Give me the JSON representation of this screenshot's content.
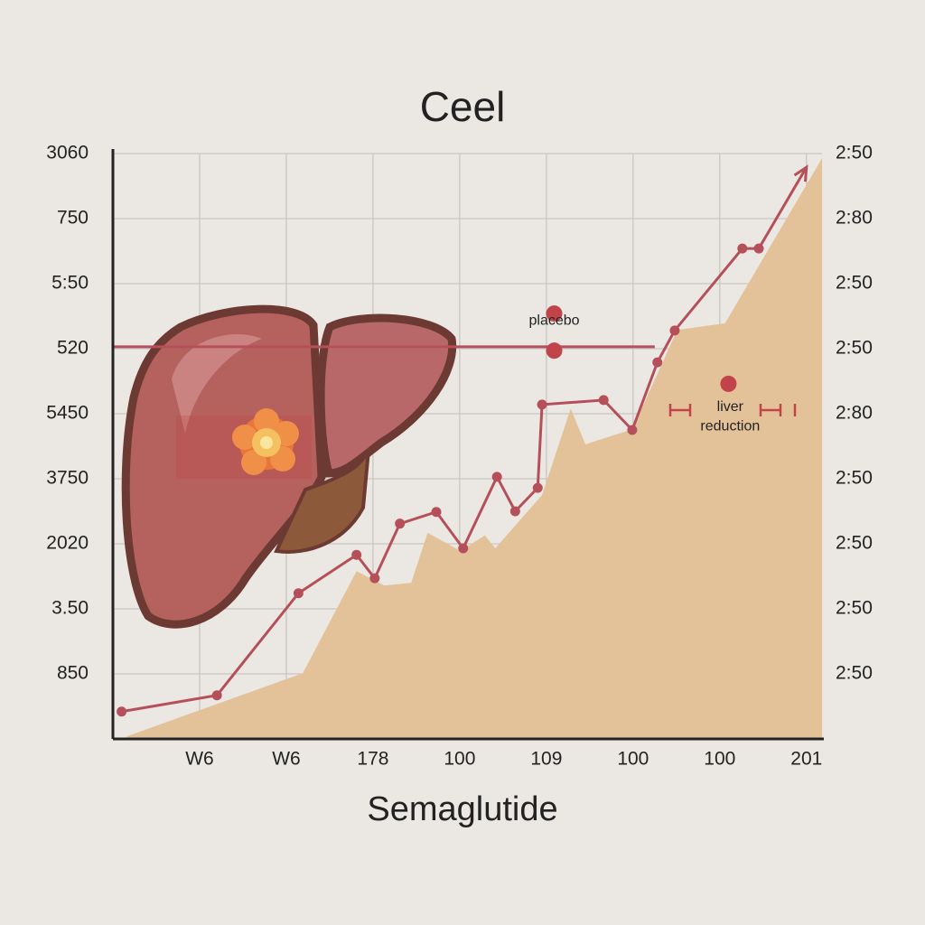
{
  "chart_data": {
    "type": "line",
    "title": "Ceel",
    "x_label": "Semaglutide",
    "xlim": [
      0,
      8.2
    ],
    "xticks": [
      {
        "value": 1,
        "label": "W6"
      },
      {
        "value": 2,
        "label": "W6"
      },
      {
        "value": 3,
        "label": "178"
      },
      {
        "value": 4,
        "label": "100"
      },
      {
        "value": 5,
        "label": "109"
      },
      {
        "value": 6,
        "label": "100"
      },
      {
        "value": 7,
        "label": "100"
      },
      {
        "value": 8,
        "label": "201"
      }
    ],
    "ylim": [
      0,
      9
    ],
    "yticks": [
      {
        "value": 1,
        "label": "850"
      },
      {
        "value": 2,
        "label": "3.50"
      },
      {
        "value": 3,
        "label": "2020"
      },
      {
        "value": 4,
        "label": "3750"
      },
      {
        "value": 5,
        "label": "5450"
      },
      {
        "value": 6,
        "label": "520"
      },
      {
        "value": 7,
        "label": "5:50"
      },
      {
        "value": 8,
        "label": "750"
      },
      {
        "value": 9,
        "label": "3060"
      }
    ],
    "y2lim": [
      0,
      9
    ],
    "y2ticks": [
      {
        "value": 1,
        "label": "2:50"
      },
      {
        "value": 2,
        "label": "2:50"
      },
      {
        "value": 3,
        "label": "2:50"
      },
      {
        "value": 4,
        "label": "2:50"
      },
      {
        "value": 5,
        "label": "2:80"
      },
      {
        "value": 6,
        "label": "2:50"
      },
      {
        "value": 7,
        "label": "2:50"
      },
      {
        "value": 8,
        "label": "2:80"
      },
      {
        "value": 9,
        "label": "2:50"
      }
    ],
    "grid": true,
    "series": [
      {
        "type": "area",
        "color": "#e4c299",
        "x": [
          0.16,
          2.19,
          2.81,
          3.13,
          3.44,
          3.63,
          4.01,
          4.29,
          4.41,
          4.95,
          5.28,
          5.45,
          5.99,
          6.51,
          7.06,
          8.18
        ],
        "values": [
          0.04,
          1.01,
          2.58,
          2.36,
          2.4,
          3.17,
          2.89,
          3.13,
          2.93,
          3.75,
          5.08,
          4.53,
          4.76,
          6.29,
          6.39,
          8.93
        ]
      },
      {
        "type": "line",
        "color": "#b5505a",
        "x": [
          0.1,
          1.2,
          2.14,
          2.81,
          3.02,
          3.31,
          3.73,
          4.04,
          4.43,
          4.64,
          4.9,
          4.95,
          5.66,
          5.99,
          6.28,
          6.48,
          7.26,
          7.45,
          8.0
        ],
        "values": [
          0.42,
          0.67,
          2.24,
          2.83,
          2.47,
          3.31,
          3.49,
          2.93,
          4.03,
          3.5,
          3.86,
          5.14,
          5.21,
          4.75,
          5.79,
          6.28,
          7.54,
          7.54,
          8.79
        ]
      }
    ],
    "reference_line": {
      "value": 6.03,
      "x_end": 6.25,
      "color": "#b5505a"
    },
    "points": {
      "color": "#c0444a",
      "x": [
        5.09,
        5.09,
        7.1
      ],
      "values": [
        6.54,
        5.97,
        5.46
      ]
    },
    "annotations": [
      {
        "text": "placebo",
        "x": 5.09,
        "y": 6.43
      },
      {
        "text": "liver",
        "x": 7.12,
        "y": 5.1
      },
      {
        "text": "reduction",
        "x": 7.12,
        "y": 4.8
      }
    ]
  }
}
